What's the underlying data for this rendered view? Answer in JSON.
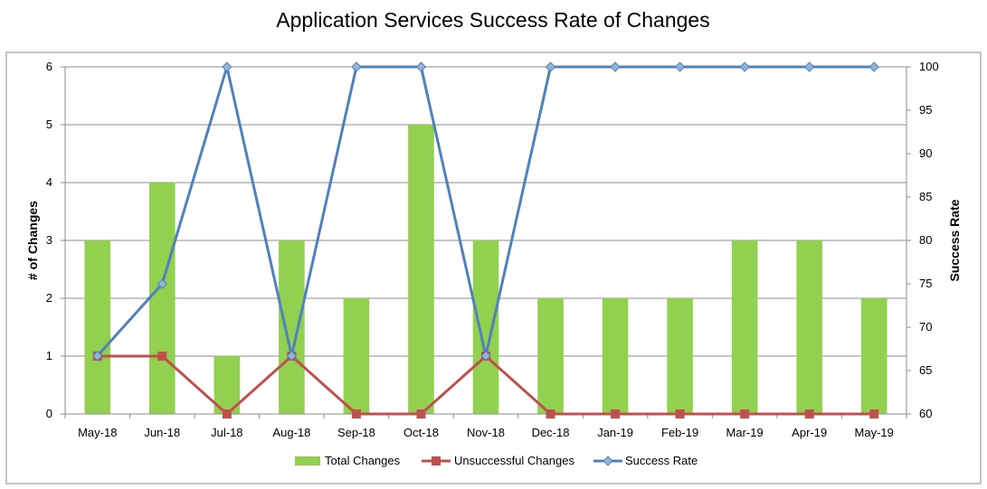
{
  "chart_data": {
    "type": "bar",
    "title": "Application Services Success Rate of Changes",
    "categories": [
      "May-18",
      "Jun-18",
      "Jul-18",
      "Aug-18",
      "Sep-18",
      "Oct-18",
      "Nov-18",
      "Dec-18",
      "Jan-19",
      "Feb-19",
      "Mar-19",
      "Apr-19",
      "May-19"
    ],
    "series": [
      {
        "name": "Total Changes",
        "kind": "bar",
        "axis": "left",
        "color": "#92d050",
        "values": [
          3,
          4,
          1,
          3,
          2,
          5,
          3,
          2,
          2,
          2,
          3,
          3,
          2
        ]
      },
      {
        "name": "Unsuccessful Changes",
        "kind": "line",
        "axis": "left",
        "color": "#c0504d",
        "marker": "square",
        "values": [
          1,
          1,
          0,
          1,
          0,
          0,
          1,
          0,
          0,
          0,
          0,
          0,
          0
        ]
      },
      {
        "name": "Success Rate",
        "kind": "line",
        "axis": "right",
        "color": "#4f81bd",
        "marker": "diamond",
        "values": [
          66.7,
          75,
          100,
          66.7,
          100,
          100,
          66.7,
          100,
          100,
          100,
          100,
          100,
          100
        ]
      }
    ],
    "ylabel": "# of Changes",
    "y2label": "Success Rate",
    "ylim": [
      0,
      6
    ],
    "y2lim": [
      60,
      100
    ],
    "yticks": [
      "0",
      "1",
      "2",
      "3",
      "4",
      "5",
      "6"
    ],
    "y2ticks": [
      "60",
      "65",
      "70",
      "75",
      "80",
      "85",
      "90",
      "95",
      "100"
    ],
    "grid": true,
    "legend": "bottom"
  }
}
